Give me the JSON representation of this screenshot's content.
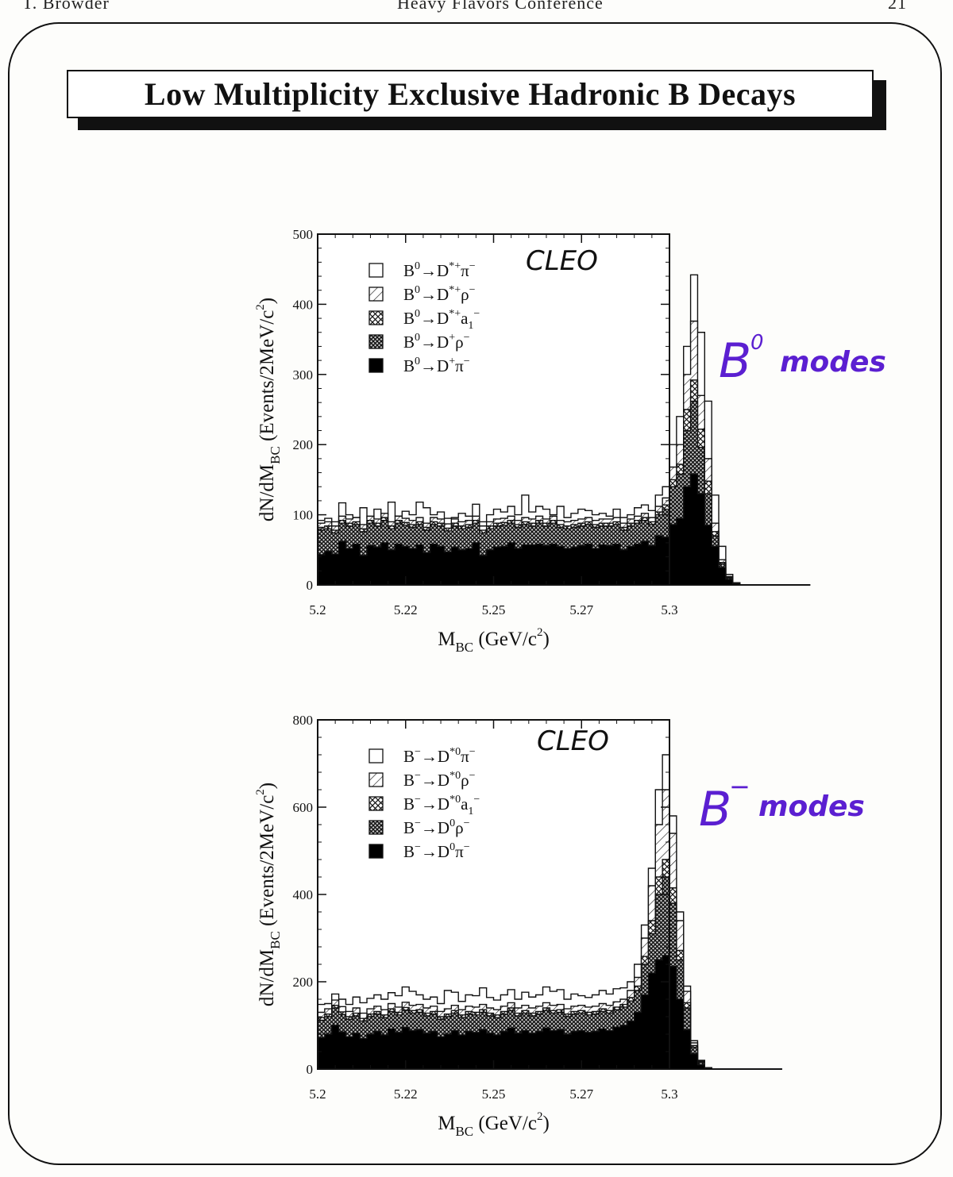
{
  "header": {
    "author": "T. Browder",
    "conference": "Heavy Flavors Conference",
    "page": "21"
  },
  "slide_title": "Low Multiplicity Exclusive Hadronic B Decays",
  "annotations": {
    "top_note": "B",
    "top_note_sup": "0",
    "top_note_rest": "modes",
    "bottom_note": "B",
    "bottom_note_sup": "−",
    "bottom_note_rest": "modes",
    "colors": {
      "ink": "#5b1fd1"
    }
  },
  "chart_data": [
    {
      "type": "area",
      "stacked": true,
      "watermark": "CLEO",
      "xlabel_main": "M",
      "xlabel_sub": "BC",
      "xlabel_rest": " (GeV/c",
      "xlabel_sup": "2",
      "xlabel_end": ")",
      "ylabel_main": "dN/dM",
      "ylabel_sub": "BC",
      "ylabel_rest": " (Events/2MeV/c",
      "ylabel_sup": "2",
      "ylabel_end": ")",
      "xlim": [
        5.2,
        5.3
      ],
      "ylim": [
        0,
        500
      ],
      "xticks": [
        5.2,
        5.225,
        5.25,
        5.275,
        5.3
      ],
      "xtick_labels": [
        "5.2",
        "5.22",
        "5.25",
        "5.27",
        "5.3"
      ],
      "yticks": [
        0,
        100,
        200,
        300,
        400,
        500
      ],
      "bin_width": 0.002,
      "x_start": 5.2,
      "legend": [
        {
          "parts": [
            "B",
            "0",
            "→D",
            "*+",
            "π",
            "−"
          ],
          "fill": "open"
        },
        {
          "parts": [
            "B",
            "0",
            "→D",
            "*+",
            "ρ",
            "−"
          ],
          "fill": "hatch"
        },
        {
          "parts": [
            "B",
            "0",
            "→D",
            "*+",
            "a",
            "1",
            "−"
          ],
          "fill": "crosshatch"
        },
        {
          "parts": [
            "B",
            "0",
            "→D",
            "+",
            "ρ",
            "−"
          ],
          "fill": "dense"
        },
        {
          "parts": [
            "B",
            "0",
            "→D",
            "+",
            "π",
            "−"
          ],
          "fill": "solid"
        }
      ],
      "series_stacked_totals": [
        {
          "name": "B0→D+π−",
          "values": [
            43,
            48,
            44,
            62,
            52,
            58,
            42,
            56,
            54,
            60,
            50,
            58,
            55,
            52,
            57,
            46,
            58,
            55,
            47,
            54,
            50,
            52,
            60,
            42,
            50,
            54,
            55,
            60,
            52,
            57,
            57,
            58,
            56,
            58,
            55,
            52,
            54,
            56,
            58,
            52,
            57,
            56,
            58,
            50,
            55,
            58,
            62,
            56,
            70,
            68,
            86,
            95,
            140,
            158,
            130,
            85,
            55,
            25,
            8,
            2,
            0,
            0,
            0,
            0,
            0,
            0,
            0,
            0,
            0,
            0
          ]
        },
        {
          "name": "B0→D+ρ−",
          "values": [
            78,
            80,
            74,
            88,
            84,
            86,
            76,
            88,
            84,
            92,
            80,
            88,
            85,
            82,
            86,
            78,
            86,
            84,
            77,
            84,
            80,
            82,
            88,
            74,
            80,
            84,
            85,
            88,
            82,
            86,
            84,
            88,
            84,
            88,
            82,
            80,
            82,
            84,
            86,
            82,
            84,
            84,
            86,
            78,
            84,
            88,
            92,
            86,
            100,
            108,
            140,
            158,
            220,
            262,
            196,
            130,
            70,
            30,
            10,
            3,
            0,
            0,
            0,
            0,
            0,
            0,
            0,
            0,
            0,
            0
          ]
        },
        {
          "name": "B0→D*+a1−",
          "values": [
            82,
            84,
            78,
            92,
            88,
            90,
            80,
            92,
            88,
            96,
            84,
            92,
            89,
            86,
            90,
            82,
            90,
            88,
            81,
            88,
            84,
            86,
            92,
            78,
            84,
            88,
            89,
            92,
            86,
            90,
            88,
            92,
            88,
            92,
            86,
            84,
            86,
            88,
            90,
            86,
            88,
            88,
            90,
            82,
            88,
            92,
            96,
            90,
            104,
            114,
            150,
            172,
            250,
            292,
            222,
            148,
            76,
            32,
            11,
            3,
            0,
            0,
            0,
            0,
            0,
            0,
            0,
            0,
            0,
            0
          ]
        },
        {
          "name": "B0→D*+ρ−",
          "values": [
            88,
            90,
            84,
            98,
            94,
            96,
            86,
            98,
            94,
            102,
            90,
            98,
            95,
            92,
            96,
            88,
            96,
            94,
            87,
            94,
            90,
            92,
            98,
            84,
            90,
            94,
            95,
            98,
            92,
            96,
            94,
            98,
            94,
            98,
            92,
            90,
            92,
            94,
            96,
            92,
            94,
            94,
            96,
            88,
            94,
            98,
            102,
            96,
            112,
            124,
            168,
            200,
            300,
            376,
            270,
            180,
            88,
            36,
            12,
            3,
            0,
            0,
            0,
            0,
            0,
            0,
            0,
            0,
            0,
            0
          ]
        },
        {
          "name": "B0→D*+π−",
          "values": [
            92,
            95,
            90,
            117,
            100,
            96,
            110,
            95,
            108,
            100,
            118,
            98,
            105,
            100,
            118,
            110,
            100,
            104,
            95,
            96,
            102,
            98,
            115,
            90,
            100,
            108,
            104,
            112,
            100,
            128,
            104,
            112,
            108,
            100,
            112,
            96,
            102,
            108,
            106,
            100,
            102,
            98,
            108,
            96,
            100,
            110,
            114,
            106,
            128,
            140,
            200,
            240,
            340,
            442,
            360,
            262,
            128,
            55,
            15,
            3,
            0,
            0,
            0,
            0,
            0,
            0,
            0,
            0,
            0,
            0
          ]
        }
      ]
    },
    {
      "type": "area",
      "stacked": true,
      "watermark": "CLEO",
      "xlabel_main": "M",
      "xlabel_sub": "BC",
      "xlabel_rest": " (GeV/c",
      "xlabel_sup": "2",
      "xlabel_end": ")",
      "ylabel_main": "dN/dM",
      "ylabel_sub": "BC",
      "ylabel_rest": " (Events/2MeV/c",
      "ylabel_sup": "2",
      "ylabel_end": ")",
      "xlim": [
        5.2,
        5.3
      ],
      "ylim": [
        0,
        800
      ],
      "xticks": [
        5.2,
        5.225,
        5.25,
        5.275,
        5.3
      ],
      "xtick_labels": [
        "5.2",
        "5.22",
        "5.25",
        "5.27",
        "5.3"
      ],
      "yticks": [
        0,
        200,
        400,
        600,
        800
      ],
      "bin_width": 0.002,
      "x_start": 5.2,
      "legend": [
        {
          "parts": [
            "B",
            "−",
            "→D",
            "*0",
            "π",
            "−"
          ],
          "fill": "open"
        },
        {
          "parts": [
            "B",
            "−",
            "→D",
            "*0",
            "ρ",
            "−"
          ],
          "fill": "hatch"
        },
        {
          "parts": [
            "B",
            "−",
            "→D",
            "*0",
            "a",
            "1",
            "−"
          ],
          "fill": "crosshatch"
        },
        {
          "parts": [
            "B",
            "−",
            "→D",
            "0",
            "ρ",
            "−"
          ],
          "fill": "dense"
        },
        {
          "parts": [
            "B",
            "−",
            "→D",
            "0",
            "π",
            "−"
          ],
          "fill": "solid"
        }
      ],
      "series_stacked_totals": [
        {
          "name": "B−→D0π−",
          "values": [
            72,
            80,
            100,
            85,
            74,
            82,
            70,
            80,
            86,
            78,
            92,
            84,
            95,
            88,
            90,
            82,
            86,
            74,
            80,
            88,
            78,
            86,
            84,
            90,
            82,
            78,
            86,
            94,
            82,
            88,
            82,
            86,
            94,
            88,
            90,
            80,
            86,
            88,
            84,
            86,
            92,
            88,
            96,
            100,
            110,
            130,
            170,
            220,
            250,
            260,
            235,
            160,
            90,
            35,
            10,
            3,
            0,
            0,
            0,
            0,
            0,
            0,
            0,
            0,
            0,
            0
          ]
        },
        {
          "name": "B−→D0ρ−",
          "values": [
            112,
            120,
            140,
            125,
            114,
            122,
            110,
            120,
            126,
            118,
            132,
            124,
            135,
            128,
            130,
            122,
            126,
            114,
            120,
            128,
            118,
            126,
            124,
            130,
            122,
            118,
            126,
            134,
            122,
            128,
            122,
            126,
            134,
            128,
            130,
            120,
            126,
            128,
            124,
            126,
            132,
            128,
            136,
            142,
            156,
            180,
            240,
            310,
            400,
            440,
            380,
            250,
            140,
            50,
            15,
            3,
            0,
            0,
            0,
            0,
            0,
            0,
            0,
            0,
            0,
            0
          ]
        },
        {
          "name": "B−→D*0a1−",
          "values": [
            118,
            126,
            146,
            131,
            120,
            128,
            116,
            126,
            132,
            124,
            138,
            130,
            141,
            134,
            136,
            128,
            132,
            120,
            126,
            134,
            124,
            132,
            130,
            136,
            128,
            124,
            132,
            140,
            128,
            134,
            128,
            132,
            140,
            134,
            136,
            126,
            132,
            134,
            130,
            132,
            138,
            134,
            142,
            148,
            164,
            190,
            258,
            340,
            440,
            480,
            415,
            272,
            152,
            54,
            16,
            3,
            0,
            0,
            0,
            0,
            0,
            0,
            0,
            0,
            0,
            0
          ]
        },
        {
          "name": "B−→D*0ρ−",
          "values": [
            130,
            138,
            158,
            143,
            132,
            140,
            128,
            138,
            144,
            136,
            150,
            142,
            153,
            146,
            148,
            140,
            144,
            132,
            138,
            146,
            136,
            144,
            142,
            148,
            140,
            136,
            144,
            152,
            140,
            146,
            140,
            144,
            152,
            146,
            148,
            138,
            144,
            146,
            142,
            144,
            150,
            146,
            154,
            160,
            180,
            210,
            300,
            420,
            560,
            640,
            540,
            340,
            178,
            60,
            18,
            3,
            0,
            0,
            0,
            0,
            0,
            0,
            0,
            0,
            0,
            0
          ]
        },
        {
          "name": "B−→D*0π−",
          "values": [
            148,
            150,
            172,
            160,
            148,
            165,
            152,
            162,
            170,
            160,
            175,
            168,
            188,
            178,
            170,
            160,
            165,
            150,
            180,
            176,
            155,
            170,
            168,
            186,
            164,
            158,
            170,
            182,
            160,
            176,
            165,
            170,
            188,
            178,
            182,
            160,
            172,
            168,
            164,
            170,
            180,
            172,
            184,
            186,
            200,
            240,
            330,
            460,
            640,
            720,
            580,
            360,
            190,
            65,
            20,
            3,
            0,
            0,
            0,
            0,
            0,
            0,
            0,
            0,
            0,
            0
          ]
        }
      ]
    }
  ]
}
